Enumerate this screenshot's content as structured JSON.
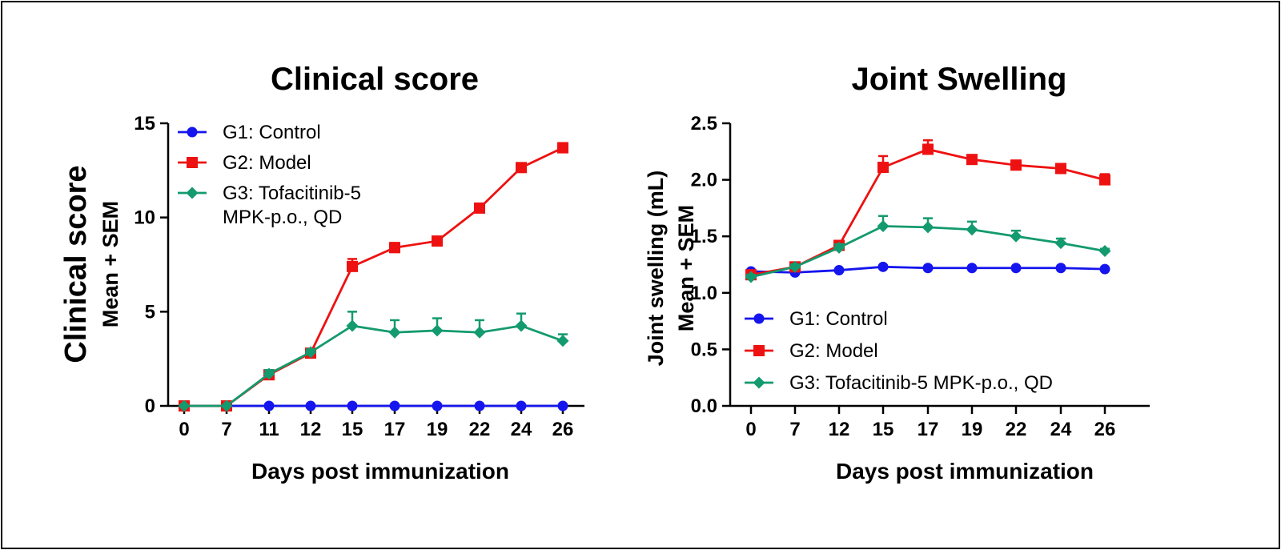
{
  "chart_data": [
    {
      "type": "line",
      "title": "Clinical score",
      "xlabel": "Days post immunization",
      "ylabel": "Clinical score",
      "ylabel_sub": "Mean + SEM",
      "categories": [
        "0",
        "7",
        "11",
        "12",
        "15",
        "17",
        "19",
        "22",
        "24",
        "26"
      ],
      "ylim": [
        0,
        15
      ],
      "yticks": [
        "0",
        "5",
        "10",
        "15"
      ],
      "legend_position": "top-left",
      "series": [
        {
          "name": "G1: Control",
          "legend_lines": [
            "G1: Control"
          ],
          "color": "#1515ee",
          "marker": "circle",
          "values": [
            0,
            0,
            0,
            0,
            0,
            0,
            0,
            0,
            0,
            0
          ],
          "errors": [
            0,
            0,
            0,
            0,
            0,
            0,
            0,
            0,
            0,
            0
          ]
        },
        {
          "name": "G2: Model",
          "legend_lines": [
            "G2: Model"
          ],
          "color": "#ee1111",
          "marker": "square",
          "values": [
            0,
            0,
            1.65,
            2.8,
            7.4,
            8.4,
            8.75,
            10.5,
            12.65,
            13.7
          ],
          "errors": [
            0,
            0,
            0.2,
            0.15,
            0.4,
            0.25,
            0.15,
            0.1,
            0.2,
            0.25
          ]
        },
        {
          "name": "G3: Tofacitinib-5 MPK-p.o., QD",
          "legend_lines": [
            "G3: Tofacitinib-5",
            "MPK-p.o., QD"
          ],
          "color": "#139a6e",
          "marker": "diamond",
          "values": [
            0,
            0,
            1.7,
            2.85,
            4.25,
            3.9,
            4.0,
            3.9,
            4.25,
            3.45
          ],
          "errors": [
            0,
            0,
            0.2,
            0.15,
            0.75,
            0.65,
            0.65,
            0.65,
            0.65,
            0.35
          ]
        }
      ]
    },
    {
      "type": "line",
      "title": "Joint Swelling",
      "xlabel": "Days post immunization",
      "ylabel": "Joint swelling (mL)",
      "ylabel_sub": "Mean + SEM",
      "categories": [
        "0",
        "7",
        "12",
        "15",
        "17",
        "19",
        "22",
        "24",
        "26"
      ],
      "ylim": [
        0,
        2.5
      ],
      "yticks": [
        "0.0",
        "0.5",
        "1.0",
        "1.5",
        "2.0",
        "2.5"
      ],
      "legend_position": "bottom-left",
      "series": [
        {
          "name": "G1: Control",
          "legend_lines": [
            "G1: Control"
          ],
          "color": "#1515ee",
          "marker": "circle",
          "values": [
            1.19,
            1.18,
            1.2,
            1.23,
            1.22,
            1.22,
            1.22,
            1.22,
            1.21
          ],
          "errors": [
            0.01,
            0.01,
            0.01,
            0.01,
            0.01,
            0.01,
            0.01,
            0.01,
            0.01
          ]
        },
        {
          "name": "G2: Model",
          "legend_lines": [
            "G2: Model"
          ],
          "color": "#ee1111",
          "marker": "square",
          "values": [
            1.16,
            1.23,
            1.42,
            2.11,
            2.27,
            2.18,
            2.13,
            2.1,
            2.0
          ],
          "errors": [
            0.02,
            0.02,
            0.03,
            0.1,
            0.08,
            0.03,
            0.04,
            0.04,
            0.05
          ]
        },
        {
          "name": "G3: Tofacitinib-5 MPK-p.o., QD",
          "legend_lines": [
            "G3: Tofacitinib-5 MPK-p.o., QD"
          ],
          "color": "#139a6e",
          "marker": "diamond",
          "values": [
            1.14,
            1.23,
            1.4,
            1.59,
            1.58,
            1.56,
            1.5,
            1.44,
            1.37
          ],
          "errors": [
            0.02,
            0.02,
            0.03,
            0.09,
            0.08,
            0.07,
            0.05,
            0.04,
            0.02
          ]
        }
      ]
    }
  ]
}
